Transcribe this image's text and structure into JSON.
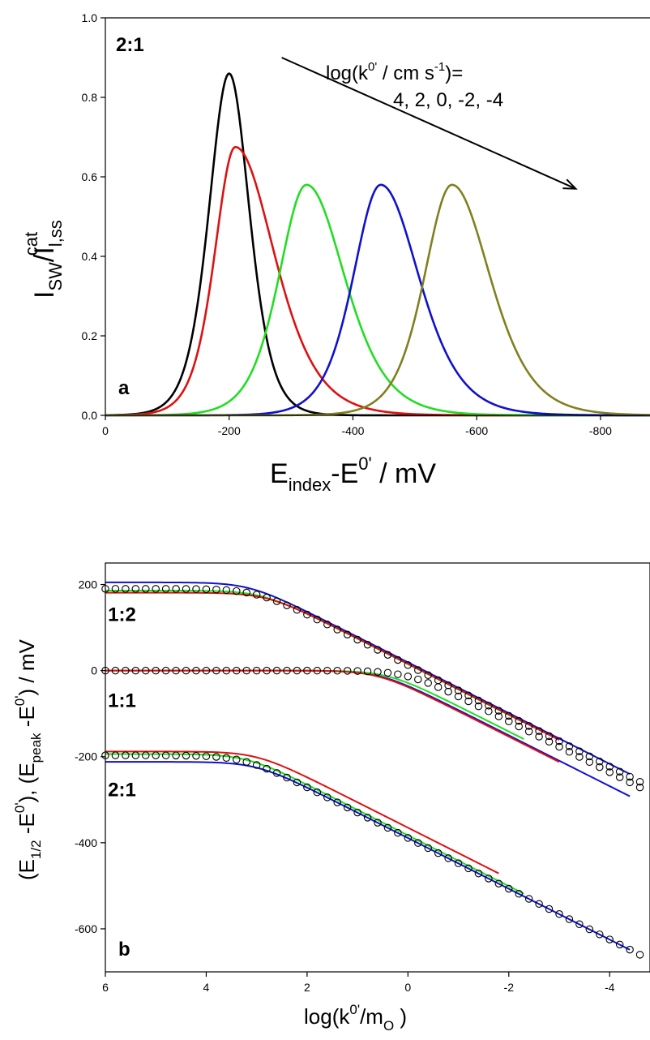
{
  "chart_data": [
    {
      "type": "line",
      "panel": "a",
      "panel_label": "a",
      "ratio_label": "2:1",
      "annotation_line1": "log(k",
      "annotation_line1_sup": "0'",
      "annotation_line1_mid": " / cm s",
      "annotation_line1_sup2": "-1",
      "annotation_line1_end": ")=",
      "annotation_line2": "4, 2, 0, -2, -4",
      "annotation_arrow": {
        "from": [
          -285,
          0.9
        ],
        "to": [
          -760,
          0.57
        ]
      },
      "ylabel": {
        "main": "I",
        "sub1": "SW",
        "mid": "/I",
        "sub2": "l,ss",
        "sup": "cat"
      },
      "xlabel": {
        "main": "E",
        "sub": "index",
        "mid": "-E",
        "sup": "0'",
        "end": " / mV"
      },
      "xlim": [
        0,
        -880
      ],
      "ylim": [
        0,
        1.0
      ],
      "x_ticks": [
        0,
        -200,
        -400,
        -600,
        -800
      ],
      "x_tick_labels": [
        "0",
        "-200",
        "-400",
        "-600",
        "-800"
      ],
      "y_ticks": [
        0,
        0.2,
        0.4,
        0.6,
        0.8,
        1.0
      ],
      "y_tick_labels": [
        "0.0",
        "0.2",
        "0.4",
        "0.6",
        "0.8",
        "1.0"
      ],
      "series": [
        {
          "log_k": 4,
          "color": "#000000",
          "peak_x": -200,
          "peak_y": 0.86,
          "width_left": 44,
          "width_right": 44
        },
        {
          "log_k": 2,
          "color": "#dd1111",
          "peak_x": -210,
          "peak_y": 0.675,
          "width_left": 45,
          "width_right": 85
        },
        {
          "log_k": 0,
          "color": "#22dd22",
          "peak_x": -325,
          "peak_y": 0.58,
          "width_left": 60,
          "width_right": 83
        },
        {
          "log_k": -2,
          "color": "#1111cc",
          "peak_x": -445,
          "peak_y": 0.58,
          "width_left": 60,
          "width_right": 83
        },
        {
          "log_k": -4,
          "color": "#808020",
          "peak_x": -560,
          "peak_y": 0.58,
          "width_left": 60,
          "width_right": 83
        }
      ]
    },
    {
      "type": "line",
      "panel": "b",
      "panel_label": "b",
      "ylabel_text": "(E1/2 -E0'), (Epeak -E0') / mV",
      "xlabel": {
        "main": "log(k",
        "sup": "0'",
        "mid": "/m",
        "sub": "O",
        "end": " )"
      },
      "xlim": [
        6,
        -4.8
      ],
      "ylim": [
        -700,
        250
      ],
      "x_ticks": [
        6,
        4,
        2,
        0,
        -2,
        -4
      ],
      "x_tick_labels": [
        "6",
        "4",
        "2",
        "0",
        "-2",
        "-4"
      ],
      "y_ticks": [
        200,
        0,
        -200,
        -400,
        -600
      ],
      "y_tick_labels": [
        "200",
        "0",
        "-200",
        "-400",
        "-600"
      ],
      "group_labels": [
        {
          "text": "1:2",
          "x": 5.95,
          "y": 115
        },
        {
          "text": "1:1",
          "x": 5.95,
          "y": -85
        },
        {
          "text": "2:1",
          "x": 5.95,
          "y": -292
        }
      ],
      "groups": [
        {
          "name": "1:2",
          "circles": {
            "plateau": 190,
            "knee": 3.0,
            "slope": 59,
            "x_end": -4.6
          },
          "lines": [
            {
              "color": "#1111cc",
              "plateau": 205,
              "knee": 3.15,
              "slope": 59,
              "x_end": -4.4
            },
            {
              "color": "#22dd22",
              "plateau": 186,
              "knee": 2.9,
              "slope": 59,
              "x_end": -2.3
            },
            {
              "color": "#dd1111",
              "plateau": 181,
              "knee": 2.8,
              "slope": 59,
              "x_end": -3.0
            }
          ]
        },
        {
          "name": "1:1",
          "circles": {
            "plateau": 0,
            "knee": 0.0,
            "slope": 59,
            "x_end": -4.6
          },
          "lines": [
            {
              "color": "#1111cc",
              "plateau": 0,
              "knee": 0.55,
              "slope": 59,
              "x_end": -4.4
            },
            {
              "color": "#22dd22",
              "plateau": 0,
              "knee": 0.4,
              "slope": 59,
              "x_end": -2.3
            },
            {
              "color": "#dd1111",
              "plateau": 0,
              "knee": 0.6,
              "slope": 59,
              "x_end": -3.0
            }
          ]
        },
        {
          "name": "2:1",
          "circles": {
            "plateau": -197,
            "knee": 3.25,
            "slope": 59,
            "x_end": -4.6
          },
          "lines": [
            {
              "color": "#1111cc",
              "plateau": -212,
              "knee": 3.0,
              "slope": 59,
              "x_end": -4.4
            },
            {
              "color": "#22dd22",
              "plateau": -194,
              "knee": 3.2,
              "slope": 59,
              "x_end": -2.3
            },
            {
              "color": "#dd1111",
              "plateau": -188,
              "knee": 3.0,
              "slope": 59,
              "x_end": -1.8
            }
          ]
        }
      ]
    }
  ]
}
